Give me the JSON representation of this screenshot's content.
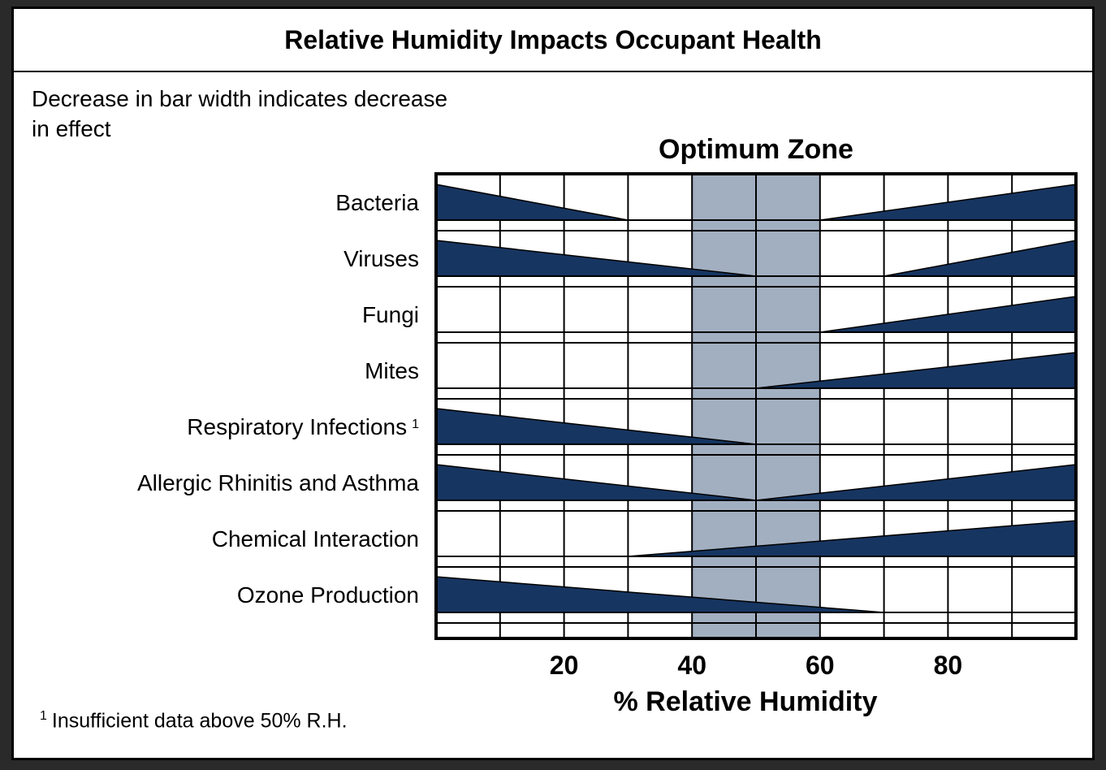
{
  "chart_data": {
    "type": "bar",
    "title": "Relative Humidity Impacts Occupant Health",
    "subtitle": "Decrease in bar width indicates decrease in effect",
    "zone_label": "Optimum Zone",
    "optimum_zone": [
      40,
      60
    ],
    "xlabel": "% Relative Humidity",
    "xlim": [
      0,
      100
    ],
    "x_ticks": [
      20,
      40,
      60,
      80
    ],
    "footnote_marker": "1",
    "footnote": "Insufficient data above 50% R.H.",
    "colors": {
      "bar": "#163561",
      "zone": "#a2afc1",
      "grid": "#000000"
    },
    "categories": [
      {
        "label": "Bacteria",
        "marker": "",
        "segments": [
          {
            "from": 0,
            "to": 30,
            "dir": "dec"
          },
          {
            "from": 60,
            "to": 100,
            "dir": "inc"
          }
        ]
      },
      {
        "label": "Viruses",
        "marker": "",
        "segments": [
          {
            "from": 0,
            "to": 50,
            "dir": "dec"
          },
          {
            "from": 70,
            "to": 100,
            "dir": "inc"
          }
        ]
      },
      {
        "label": "Fungi",
        "marker": "",
        "segments": [
          {
            "from": 60,
            "to": 100,
            "dir": "inc"
          }
        ]
      },
      {
        "label": "Mites",
        "marker": "",
        "segments": [
          {
            "from": 50,
            "to": 100,
            "dir": "inc"
          }
        ]
      },
      {
        "label": "Respiratory Infections",
        "marker": "1",
        "segments": [
          {
            "from": 0,
            "to": 50,
            "dir": "dec"
          }
        ]
      },
      {
        "label": "Allergic Rhinitis and Asthma",
        "marker": "",
        "segments": [
          {
            "from": 0,
            "to": 50,
            "dir": "dec"
          },
          {
            "from": 50,
            "to": 100,
            "dir": "inc"
          }
        ]
      },
      {
        "label": "Chemical Interaction",
        "marker": "",
        "segments": [
          {
            "from": 30,
            "to": 100,
            "dir": "inc"
          }
        ]
      },
      {
        "label": "Ozone Production",
        "marker": "",
        "segments": [
          {
            "from": 0,
            "to": 70,
            "dir": "dec"
          }
        ]
      }
    ]
  }
}
